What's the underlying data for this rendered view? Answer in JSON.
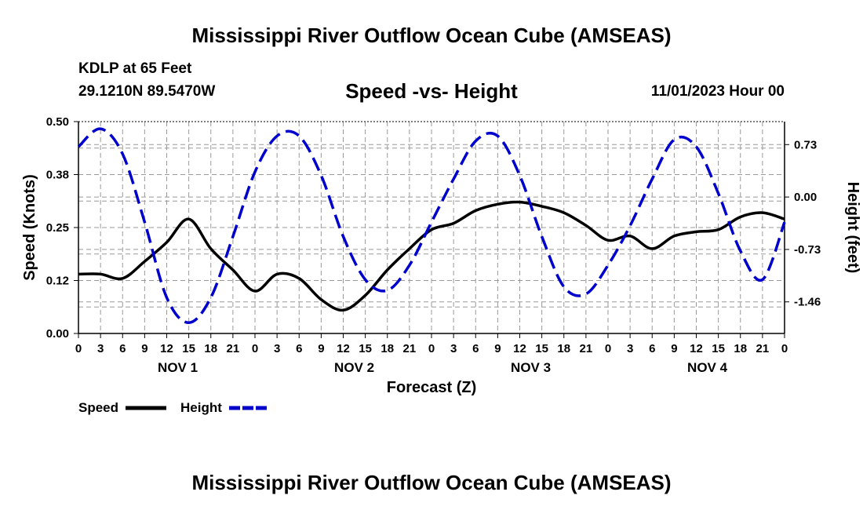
{
  "header": {
    "title": "Mississippi River Outflow Ocean Cube (AMSEAS)",
    "station": "KDLP at 65 Feet",
    "coords": "29.1210N  89.5470W",
    "subtitle": "Speed -vs- Height",
    "datetime": "11/01/2023 Hour 00",
    "footer_title": "Mississippi River Outflow Ocean Cube (AMSEAS)"
  },
  "colors": {
    "speed": "#000000",
    "height": "#0000cc",
    "grid": "#999999"
  },
  "chart_data": {
    "type": "line",
    "xlabel": "Forecast (Z)",
    "ylabel_left": "Speed (Knots)",
    "ylabel_right": "Height (feet)",
    "xlim_hours": [
      0,
      96
    ],
    "ylim_left": [
      0,
      0.5
    ],
    "ylim_right": [
      -1.9,
      1.05
    ],
    "yticks_left": [
      "0.00",
      "0.12",
      "0.25",
      "0.38",
      "0.50"
    ],
    "yticks_left_values": [
      0,
      0.125,
      0.25,
      0.375,
      0.5
    ],
    "yticks_right": [
      "0.73",
      "0.00",
      "-0.73",
      "-1.46"
    ],
    "yticks_right_values": [
      0.73,
      0,
      -0.73,
      -1.46
    ],
    "xtick_labels": [
      "0",
      "3",
      "6",
      "9",
      "12",
      "15",
      "18",
      "21",
      "0",
      "3",
      "6",
      "9",
      "12",
      "15",
      "18",
      "21",
      "0",
      "3",
      "6",
      "9",
      "12",
      "15",
      "18",
      "21",
      "0",
      "3",
      "6",
      "9",
      "12",
      "15",
      "18",
      "21",
      "0"
    ],
    "day_labels": [
      "NOV 1",
      "NOV 2",
      "NOV 3",
      "NOV 4"
    ],
    "grid": true,
    "legend": {
      "position": "bottom-left",
      "speed_label": "Speed",
      "height_label": "Height"
    },
    "series": [
      {
        "name": "Speed",
        "axis": "left",
        "style": "solid",
        "x": [
          0,
          3,
          6,
          9,
          12,
          15,
          18,
          21,
          24,
          27,
          30,
          33,
          36,
          39,
          42,
          45,
          48,
          51,
          54,
          57,
          60,
          63,
          66,
          69,
          72,
          75,
          78,
          81,
          84,
          87,
          90,
          93,
          96
        ],
        "y": [
          0.14,
          0.14,
          0.13,
          0.17,
          0.215,
          0.27,
          0.2,
          0.15,
          0.1,
          0.14,
          0.13,
          0.08,
          0.055,
          0.09,
          0.15,
          0.2,
          0.245,
          0.26,
          0.29,
          0.305,
          0.31,
          0.3,
          0.285,
          0.255,
          0.22,
          0.23,
          0.2,
          0.23,
          0.24,
          0.245,
          0.275,
          0.285,
          0.27
        ]
      },
      {
        "name": "Height",
        "axis": "right",
        "style": "dashed",
        "x": [
          0,
          3,
          6,
          9,
          12,
          15,
          18,
          21,
          24,
          27,
          30,
          33,
          36,
          39,
          42,
          45,
          48,
          51,
          54,
          57,
          60,
          63,
          66,
          69,
          72,
          75,
          78,
          81,
          84,
          87,
          90,
          93,
          96
        ],
        "y": [
          0.7,
          0.95,
          0.6,
          -0.35,
          -1.4,
          -1.75,
          -1.4,
          -0.55,
          0.35,
          0.85,
          0.85,
          0.3,
          -0.55,
          -1.15,
          -1.3,
          -0.95,
          -0.35,
          0.25,
          0.78,
          0.85,
          0.3,
          -0.55,
          -1.25,
          -1.35,
          -0.95,
          -0.4,
          0.25,
          0.8,
          0.7,
          0.05,
          -0.75,
          -1.15,
          -0.35
        ]
      }
    ]
  }
}
